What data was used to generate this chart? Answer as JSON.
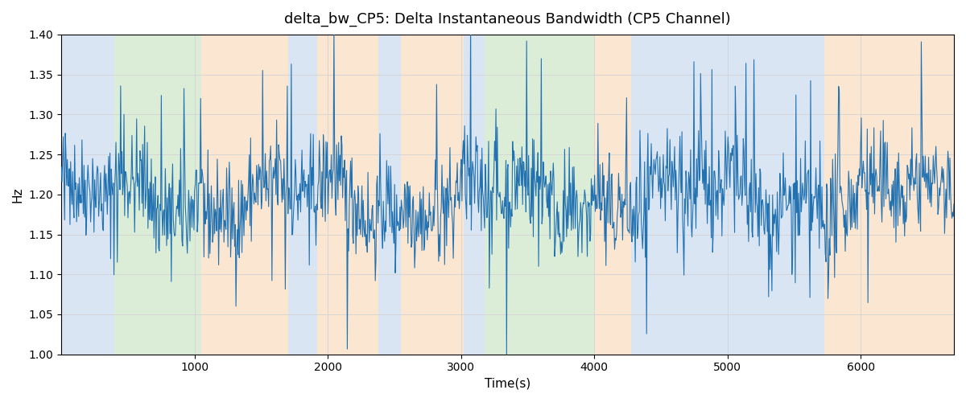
{
  "title": "delta_bw_CP5: Delta Instantaneous Bandwidth (CP5 Channel)",
  "xlabel": "Time(s)",
  "ylabel": "Hz",
  "ylim": [
    1.0,
    1.4
  ],
  "xlim": [
    0,
    6700
  ],
  "line_color": "#2272b2",
  "line_width": 0.8,
  "background_color": "#ffffff",
  "bands": [
    {
      "xmin": 0,
      "xmax": 400,
      "color": "#aec6e8",
      "alpha": 0.45
    },
    {
      "xmin": 400,
      "xmax": 1050,
      "color": "#b2d8a8",
      "alpha": 0.45
    },
    {
      "xmin": 1050,
      "xmax": 1700,
      "color": "#f7c99a",
      "alpha": 0.45
    },
    {
      "xmin": 1700,
      "xmax": 1920,
      "color": "#aec6e8",
      "alpha": 0.45
    },
    {
      "xmin": 1920,
      "xmax": 2380,
      "color": "#f7c99a",
      "alpha": 0.45
    },
    {
      "xmin": 2380,
      "xmax": 2550,
      "color": "#aec6e8",
      "alpha": 0.45
    },
    {
      "xmin": 2550,
      "xmax": 3020,
      "color": "#f7c99a",
      "alpha": 0.45
    },
    {
      "xmin": 3020,
      "xmax": 3180,
      "color": "#aec6e8",
      "alpha": 0.45
    },
    {
      "xmin": 3180,
      "xmax": 4000,
      "color": "#b2d8a8",
      "alpha": 0.45
    },
    {
      "xmin": 4000,
      "xmax": 4280,
      "color": "#f7c99a",
      "alpha": 0.45
    },
    {
      "xmin": 4280,
      "xmax": 5730,
      "color": "#aec6e8",
      "alpha": 0.45
    },
    {
      "xmin": 5730,
      "xmax": 6700,
      "color": "#f7c99a",
      "alpha": 0.45
    }
  ],
  "yticks": [
    1.0,
    1.05,
    1.1,
    1.15,
    1.2,
    1.25,
    1.3,
    1.35,
    1.4
  ],
  "xticks": [
    1000,
    2000,
    3000,
    4000,
    5000,
    6000
  ],
  "seed": 42,
  "n_points": 1340,
  "figsize": [
    12,
    5
  ],
  "dpi": 100
}
